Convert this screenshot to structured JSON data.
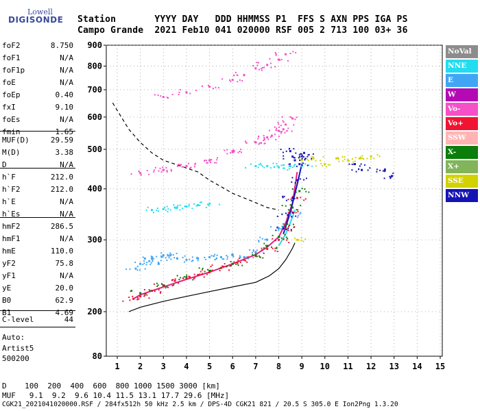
{
  "logo": {
    "top": "Lowell",
    "bottom": "DIGISONDE"
  },
  "header": {
    "line1": "Station       YYYY DAY   DDD HHMMSS P1  FFS S AXN PPS IGA PS",
    "line2": "Campo Grande  2021 Feb10 041 020000 RSF 005 2 713 100 03+ 36"
  },
  "params_group1": [
    {
      "name": "foF2",
      "value": "8.750"
    },
    {
      "name": "foF1",
      "value": "N/A"
    },
    {
      "name": "foF1p",
      "value": "N/A"
    },
    {
      "name": "foE",
      "value": "N/A"
    },
    {
      "name": "foEp",
      "value": "0.40"
    },
    {
      "name": "fxI",
      "value": "9.10"
    },
    {
      "name": "foEs",
      "value": "N/A"
    },
    {
      "name": "fmin",
      "value": "1.65"
    }
  ],
  "params_group2": [
    {
      "name": "MUF(D)",
      "value": "29.59"
    },
    {
      "name": "M(D)",
      "value": "3.38"
    },
    {
      "name": "D",
      "value": "N/A"
    }
  ],
  "params_group3": [
    {
      "name": "h`F",
      "value": "212.0"
    },
    {
      "name": "h`F2",
      "value": "212.0"
    },
    {
      "name": "h`E",
      "value": "N/A"
    },
    {
      "name": "h`Es",
      "value": "N/A"
    }
  ],
  "params_group4": [
    {
      "name": "hmF2",
      "value": "286.5"
    },
    {
      "name": "hmF1",
      "value": "N/A"
    },
    {
      "name": "hmE",
      "value": "110.0"
    },
    {
      "name": "yF2",
      "value": "75.8"
    },
    {
      "name": "yF1",
      "value": "N/A"
    },
    {
      "name": "yE",
      "value": "20.0"
    },
    {
      "name": "B0",
      "value": "62.9"
    },
    {
      "name": "B1",
      "value": "4.69"
    }
  ],
  "params_group5": [
    {
      "name": "C-level",
      "value": "44"
    }
  ],
  "auto": {
    "l1": "Auto:",
    "l2": "Artist5",
    "l3": "500200"
  },
  "legend": [
    {
      "label": "NoVal",
      "color": "#8c8c8c"
    },
    {
      "label": "NNE",
      "color": "#23dcf0"
    },
    {
      "label": "E",
      "color": "#41a5f5"
    },
    {
      "label": "W",
      "color": "#b40ab4"
    },
    {
      "label": "Vo-",
      "color": "#f550c8"
    },
    {
      "label": "Vo+",
      "color": "#f01432"
    },
    {
      "label": "SSW",
      "color": "#ffb4b4"
    },
    {
      "label": "X-",
      "color": "#0a7d0a"
    },
    {
      "label": "X+",
      "color": "#82b45a"
    },
    {
      "label": "SSE",
      "color": "#d2d200"
    },
    {
      "label": "NNW",
      "color": "#1414b4"
    }
  ],
  "footer": {
    "d_row": "D    100  200  400  600  800 1000 1500 3000 [km]",
    "muf_row": "MUF   9.1  9.2  9.6 10.4 11.5 13.1 17.7 29.6 [MHz]",
    "file_row": "CGK21_2021041020000.RSF / 284fx512h 50 kHz 2.5 km / DPS-4D CGK21 821 / 20.5 S 305.0 E Ion2Png 1.3.20"
  },
  "chart_data": {
    "type": "scatter",
    "xlim": [
      0.8,
      15
    ],
    "ylim": [
      80,
      900
    ],
    "y_scale": "log",
    "x_ticks": [
      1,
      2,
      3,
      4,
      5,
      6,
      7,
      8,
      9,
      10,
      11,
      12,
      13,
      14,
      15
    ],
    "y_ticks": [
      80,
      200,
      300,
      400,
      500,
      600,
      700,
      800,
      900
    ],
    "grid": true,
    "series": [
      {
        "name": "Vo+",
        "color": "#f01432",
        "x": [
          1.7,
          2,
          2.5,
          3,
          3.5,
          4,
          4.5,
          5,
          5.5,
          6,
          6.5,
          7,
          7.5,
          8,
          8.3,
          8.6,
          8.8
        ],
        "y": [
          215,
          218,
          225,
          232,
          238,
          242,
          246,
          250,
          256,
          262,
          268,
          274,
          285,
          300,
          320,
          350,
          380
        ]
      },
      {
        "name": "X-",
        "color": "#0a7d0a",
        "x": [
          2,
          3,
          4,
          5,
          6,
          7,
          7.5,
          8,
          8.3,
          8.6,
          8.9
        ],
        "y": [
          222,
          232,
          243,
          252,
          262,
          275,
          290,
          305,
          325,
          360,
          395
        ]
      },
      {
        "name": "E",
        "color": "#41a5f5",
        "x": [
          1.8,
          2,
          2.2,
          2.5,
          2.8,
          3,
          3.3,
          3.6,
          4,
          4.5,
          5,
          5.5,
          6,
          6.5,
          7,
          7.5,
          8,
          8.5
        ],
        "y": [
          255,
          262,
          270,
          270,
          262,
          275,
          275,
          270,
          268,
          270,
          272,
          272,
          275,
          272,
          280,
          300,
          320,
          345
        ]
      },
      {
        "name": "NNE",
        "color": "#23dcf0",
        "x": [
          2.5,
          3,
          3.5,
          4,
          4.5,
          5,
          7,
          7.5,
          8,
          8.5,
          9
        ],
        "y": [
          355,
          357,
          360,
          362,
          365,
          368,
          455,
          455,
          452,
          455,
          455
        ]
      },
      {
        "name": "Vo-",
        "color": "#f550c8",
        "x": [
          2,
          3,
          4,
          5,
          6,
          7,
          7.5,
          8,
          8.3,
          8.6,
          3,
          4,
          5,
          6,
          6.5,
          7,
          7.5,
          8,
          8.3,
          3,
          4,
          5,
          6,
          7,
          7.7,
          8.2
        ],
        "y": [
          437,
          445,
          455,
          470,
          495,
          520,
          535,
          555,
          575,
          595,
          672,
          690,
          712,
          740,
          760,
          790,
          805,
          830,
          855,
          445,
          455,
          470,
          492,
          520,
          540,
          560
        ]
      },
      {
        "name": "NNW",
        "color": "#1414b4",
        "x": [
          8.2,
          8.4,
          8.6,
          8.8,
          8.9,
          9,
          9.1,
          8.5,
          8.6,
          8.7,
          11.3,
          11.6,
          12.6,
          12.9
        ],
        "y": [
          320,
          345,
          380,
          420,
          460,
          480,
          490,
          495,
          480,
          470,
          460,
          445,
          445,
          430
        ]
      },
      {
        "name": "SSE",
        "color": "#d2d200",
        "x": [
          9,
          9.5,
          10,
          10.5,
          11,
          11.5,
          12,
          8.8
        ],
        "y": [
          470,
          475,
          460,
          475,
          470,
          475,
          480,
          300
        ]
      }
    ],
    "lines": [
      {
        "name": "profile",
        "color": "#000000",
        "style": "solid",
        "x": [
          1.5,
          2,
          3,
          4,
          5,
          6,
          7,
          7.6,
          8,
          8.3,
          8.5,
          8.6,
          8.7
        ],
        "y": [
          200,
          205,
          212,
          218,
          224,
          230,
          236,
          245,
          255,
          268,
          280,
          286.5,
          295
        ]
      },
      {
        "name": "MUF",
        "color": "#000000",
        "style": "dashed",
        "x": [
          0.8,
          1.5,
          2,
          2.5,
          3,
          3.5,
          4,
          4.5,
          5,
          5.5,
          6,
          6.5,
          7,
          7.5,
          8
        ],
        "y": [
          650,
          560,
          520,
          490,
          470,
          460,
          450,
          440,
          420,
          405,
          390,
          380,
          370,
          360,
          355
        ]
      },
      {
        "name": "trace-pink",
        "color": "#e02080",
        "style": "solid",
        "x": [
          1.7,
          2,
          3,
          4,
          5,
          6,
          7,
          7.5,
          8,
          8.3,
          8.6,
          8.8
        ],
        "y": [
          215,
          220,
          230,
          240,
          250,
          262,
          276,
          288,
          305,
          330,
          370,
          440
        ]
      },
      {
        "name": "trace-blue",
        "color": "#1414b4",
        "style": "solid",
        "x": [
          8.2,
          8.5,
          8.8,
          9.0
        ],
        "y": [
          310,
          350,
          410,
          460
        ]
      },
      {
        "name": "trace-cyan",
        "color": "#23dcf0",
        "style": "solid",
        "x": [
          8,
          8.3,
          8.5,
          8.7
        ],
        "y": [
          290,
          310,
          330,
          355
        ]
      }
    ]
  }
}
